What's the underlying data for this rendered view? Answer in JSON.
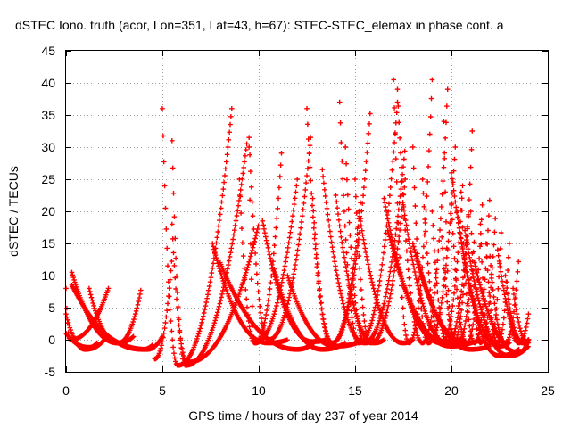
{
  "chart_data": {
    "type": "scatter",
    "title": "dSTEC Iono. truth (acor, Lon=351, Lat=43, h=67): STEC-STEC_elemax in phase cont. a",
    "xlabel": "GPS time / hours of day 237 of year 2014",
    "ylabel": "dSTEC  / TECUs",
    "xlim": [
      0,
      25
    ],
    "ylim": [
      -5,
      45
    ],
    "xticks": [
      "0",
      "5",
      "10",
      "15",
      "20",
      "25"
    ],
    "yticks": [
      "-5",
      "0",
      "5",
      "10",
      "15",
      "20",
      "25",
      "30",
      "35",
      "40",
      "45"
    ],
    "grid": true,
    "marker": "plus",
    "color": "#ff0000",
    "arcs": [
      {
        "start": 0.0,
        "end": 2.0,
        "peak_x": 0.0,
        "peak_y": 4,
        "min_y": -1.5,
        "trough_x": 1.0,
        "end_y": 0
      },
      {
        "start": 0.0,
        "end": 1.6,
        "peak_x": 0.0,
        "peak_y": 1,
        "min_y": -1.2,
        "trough_x": 1.2,
        "end_y": -0.5
      },
      {
        "start": 0.3,
        "end": 3.5,
        "peak_x": 0.3,
        "peak_y": 10.5,
        "min_y": -0.5,
        "trough_x": 2.7,
        "end_y": 0.5
      },
      {
        "start": 0.0,
        "end": 2.2,
        "peak_x": 2.2,
        "peak_y": 8,
        "min_y": 0,
        "trough_x": 0.2,
        "end_y": 8
      },
      {
        "start": 0.3,
        "end": 4.5,
        "peak_x": 1.6,
        "peak_y": 8.5,
        "min_y": -1.5,
        "trough_x": 4.0,
        "end_y": -0.8
      },
      {
        "start": 1.2,
        "end": 3.9,
        "peak_x": 3.9,
        "peak_y": 8,
        "min_y": -0.5,
        "trough_x": 2.7,
        "end_y": 8
      },
      {
        "start": 2.0,
        "end": 5.0,
        "peak_x": 2.0,
        "peak_y": 1,
        "min_y": -1.5,
        "trough_x": 4.2,
        "end_y": 0.5
      },
      {
        "start": 4.6,
        "end": 5.5,
        "peak_x": 5.5,
        "peak_y": 13,
        "min_y": -3,
        "trough_x": 4.6,
        "end_y": 13
      },
      {
        "start": 5.0,
        "end": 8.6,
        "peak_x": 8.6,
        "peak_y": 36,
        "min_y": -4,
        "trough_x": 5.8,
        "end_y": 36
      },
      {
        "start": 5.5,
        "end": 9.4,
        "peak_x": 9.4,
        "peak_y": 31,
        "min_y": -4,
        "trough_x": 6.2,
        "end_y": 31
      },
      {
        "start": 5.5,
        "end": 10.0,
        "peak_x": 10.0,
        "peak_y": 18,
        "min_y": -3.5,
        "trough_x": 6.3,
        "end_y": 18
      },
      {
        "start": 7.6,
        "end": 11.5,
        "peak_x": 7.6,
        "peak_y": 15,
        "min_y": -0.5,
        "trough_x": 10.5,
        "end_y": 0
      },
      {
        "start": 8.0,
        "end": 13.0,
        "peak_x": 8.0,
        "peak_y": 12,
        "min_y": -1.5,
        "trough_x": 12.0,
        "end_y": 0
      },
      {
        "start": 9.5,
        "end": 11.2,
        "peak_x": 11.2,
        "peak_y": 30,
        "min_y": -0.5,
        "trough_x": 9.8,
        "end_y": 30
      },
      {
        "start": 9.0,
        "end": 12.0,
        "peak_x": 12.0,
        "peak_y": 25,
        "min_y": -0.5,
        "trough_x": 9.8,
        "end_y": 25
      },
      {
        "start": 9.5,
        "end": 12.7,
        "peak_x": 12.7,
        "peak_y": 31.5,
        "min_y": 0,
        "trough_x": 10.5,
        "end_y": 31.5
      },
      {
        "start": 10.2,
        "end": 13.5,
        "peak_x": 10.2,
        "peak_y": 18.5,
        "min_y": -0.3,
        "trough_x": 12.8,
        "end_y": 0
      },
      {
        "start": 10.8,
        "end": 14.5,
        "peak_x": 10.8,
        "peak_y": 11,
        "min_y": -1.5,
        "trough_x": 13.3,
        "end_y": -0.5
      },
      {
        "start": 11.5,
        "end": 15.5,
        "peak_x": 11.5,
        "peak_y": 10,
        "min_y": -1,
        "trough_x": 14.0,
        "end_y": 0
      },
      {
        "start": 13.3,
        "end": 16.0,
        "peak_x": 13.3,
        "peak_y": 26.5,
        "min_y": -0.5,
        "trough_x": 15.5,
        "end_y": 0
      },
      {
        "start": 14.0,
        "end": 16.5,
        "peak_x": 14.0,
        "peak_y": 22.5,
        "min_y": -0.5,
        "trough_x": 16.0,
        "end_y": 0
      },
      {
        "start": 12.5,
        "end": 15.8,
        "peak_x": 15.8,
        "peak_y": 36,
        "min_y": -0.5,
        "trough_x": 13.8,
        "end_y": 36
      },
      {
        "start": 12.8,
        "end": 15.3,
        "peak_x": 15.3,
        "peak_y": 22,
        "min_y": -0.5,
        "trough_x": 13.8,
        "end_y": 22
      },
      {
        "start": 15.2,
        "end": 18.0,
        "peak_x": 15.2,
        "peak_y": 20,
        "min_y": -0.5,
        "trough_x": 17.5,
        "end_y": 0
      },
      {
        "start": 14.2,
        "end": 17.2,
        "peak_x": 17.2,
        "peak_y": 37,
        "min_y": -0.5,
        "trough_x": 15.2,
        "end_y": 37
      },
      {
        "start": 14.5,
        "end": 17.6,
        "peak_x": 17.6,
        "peak_y": 30,
        "min_y": -0.3,
        "trough_x": 15.5,
        "end_y": 30
      },
      {
        "start": 15.0,
        "end": 17.6,
        "peak_x": 17.6,
        "peak_y": 25,
        "min_y": -0.5,
        "trough_x": 15.8,
        "end_y": 25
      },
      {
        "start": 16.5,
        "end": 20.0,
        "peak_x": 16.5,
        "peak_y": 22,
        "min_y": -0.5,
        "trough_x": 19.5,
        "end_y": 0
      },
      {
        "start": 16.7,
        "end": 21.0,
        "peak_x": 16.7,
        "peak_y": 17,
        "min_y": -1,
        "trough_x": 20.0,
        "end_y": -0.5
      },
      {
        "start": 17.5,
        "end": 20.5,
        "peak_x": 17.5,
        "peak_y": 21,
        "min_y": -0.5,
        "trough_x": 19.8,
        "end_y": 0
      },
      {
        "start": 18.0,
        "end": 21.5,
        "peak_x": 18.0,
        "peak_y": 15,
        "min_y": -0.5,
        "trough_x": 20.8,
        "end_y": 0
      },
      {
        "start": 18.2,
        "end": 22.0,
        "peak_x": 18.2,
        "peak_y": 13,
        "min_y": -1.5,
        "trough_x": 21.0,
        "end_y": -1
      },
      {
        "start": 17.0,
        "end": 19.0,
        "peak_x": 19.0,
        "peak_y": 40.5,
        "min_y": -0.5,
        "trough_x": 17.8,
        "end_y": 40.5
      },
      {
        "start": 17.2,
        "end": 19.8,
        "peak_x": 19.8,
        "peak_y": 39,
        "min_y": -0.5,
        "trough_x": 18.5,
        "end_y": 39
      },
      {
        "start": 18.0,
        "end": 20.2,
        "peak_x": 20.2,
        "peak_y": 30,
        "min_y": -0.5,
        "trough_x": 18.8,
        "end_y": 30
      },
      {
        "start": 18.5,
        "end": 20.6,
        "peak_x": 20.6,
        "peak_y": 25,
        "min_y": -0.5,
        "trough_x": 19.5,
        "end_y": 25
      },
      {
        "start": 19.0,
        "end": 20.9,
        "peak_x": 20.9,
        "peak_y": 20,
        "min_y": -0.5,
        "trough_x": 19.8,
        "end_y": 20
      },
      {
        "start": 19.5,
        "end": 21.2,
        "peak_x": 21.2,
        "peak_y": 16,
        "min_y": -0.5,
        "trough_x": 20.3,
        "end_y": 16
      },
      {
        "start": 20.0,
        "end": 23.0,
        "peak_x": 20.0,
        "peak_y": 26,
        "min_y": -1,
        "trough_x": 22.5,
        "end_y": -0.5
      },
      {
        "start": 20.3,
        "end": 23.5,
        "peak_x": 20.3,
        "peak_y": 20,
        "min_y": -2.5,
        "trough_x": 22.5,
        "end_y": -1.5
      },
      {
        "start": 20.7,
        "end": 24.0,
        "peak_x": 20.7,
        "peak_y": 17,
        "min_y": -2.5,
        "trough_x": 23.0,
        "end_y": -1
      },
      {
        "start": 19.6,
        "end": 21.1,
        "peak_x": 21.1,
        "peak_y": 34,
        "min_y": -0.5,
        "trough_x": 20.1,
        "end_y": 34
      },
      {
        "start": 20.5,
        "end": 22.0,
        "peak_x": 22.0,
        "peak_y": 23,
        "min_y": -0.5,
        "trough_x": 21.2,
        "end_y": 23
      },
      {
        "start": 20.0,
        "end": 21.6,
        "peak_x": 21.6,
        "peak_y": 21,
        "min_y": -0.5,
        "trough_x": 20.8,
        "end_y": 21
      },
      {
        "start": 21.0,
        "end": 22.3,
        "peak_x": 22.3,
        "peak_y": 20,
        "min_y": -0.5,
        "trough_x": 21.5,
        "end_y": 20
      },
      {
        "start": 21.5,
        "end": 22.6,
        "peak_x": 22.6,
        "peak_y": 18,
        "min_y": -0.5,
        "trough_x": 22.0,
        "end_y": 18
      },
      {
        "start": 21.8,
        "end": 23.0,
        "peak_x": 23.0,
        "peak_y": 15,
        "min_y": -0.5,
        "trough_x": 22.4,
        "end_y": 15
      },
      {
        "start": 21.2,
        "end": 24.0,
        "peak_x": 21.2,
        "peak_y": 12,
        "min_y": -2,
        "trough_x": 23.5,
        "end_y": 0
      },
      {
        "start": 22.0,
        "end": 23.5,
        "peak_x": 23.5,
        "peak_y": 13,
        "min_y": -0.5,
        "trough_x": 22.8,
        "end_y": 13
      },
      {
        "start": 22.4,
        "end": 24.0,
        "peak_x": 22.4,
        "peak_y": 14,
        "min_y": -0.5,
        "trough_x": 23.8,
        "end_y": 0
      },
      {
        "start": 22.8,
        "end": 24.0,
        "peak_x": 22.8,
        "peak_y": 10,
        "min_y": -0.5,
        "trough_x": 23.7,
        "end_y": 0
      },
      {
        "start": 23.0,
        "end": 24.0,
        "peak_x": 24.0,
        "peak_y": 4,
        "min_y": -0.5,
        "trough_x": 23.5,
        "end_y": 4
      },
      {
        "start": 23.2,
        "end": 24.0,
        "peak_x": 23.2,
        "peak_y": 8,
        "min_y": -0.5,
        "trough_x": 24.0,
        "end_y": -0.5
      }
    ]
  }
}
